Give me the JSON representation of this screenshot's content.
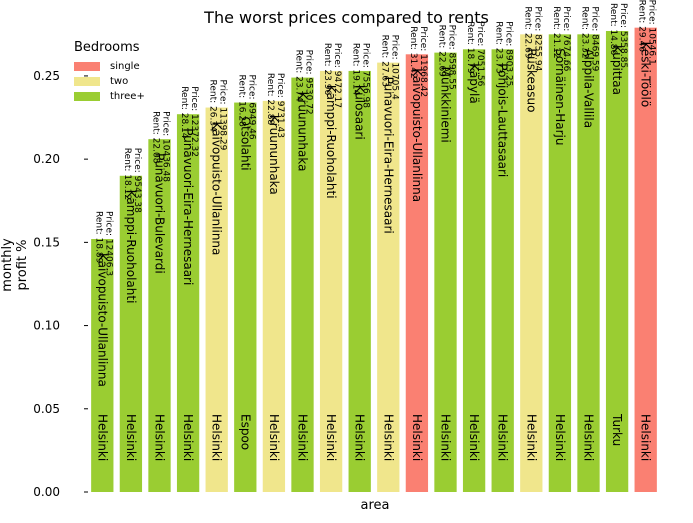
{
  "chart_data": {
    "type": "bar",
    "title": "The worst prices compared to rents",
    "xlabel": "area",
    "ylabel": "monthly profit %",
    "ylim": [
      0,
      0.28
    ],
    "yticks": [
      "0.00",
      "0.05",
      "0.10",
      "0.15",
      "0.20",
      "0.25"
    ],
    "grid": false,
    "legend": {
      "title": "Bedrooms",
      "placement": "top-left",
      "items": [
        {
          "label": "single",
          "color": "#fa8072"
        },
        {
          "label": "two",
          "color": "#f0e68c"
        },
        {
          "label": "three+",
          "color": "#9acd32"
        }
      ]
    },
    "bars": [
      {
        "area": "Kaivopuisto-Ullanlinna",
        "city": "Helsinki",
        "value": 0.152,
        "bedrooms": "three+",
        "price": "Price: 12406.3",
        "rent": "Rent: 18.89"
      },
      {
        "area": "Kamppi-Ruoholahti",
        "city": "Helsinki",
        "value": 0.19,
        "bedrooms": "three+",
        "price": "Price: 9543.38",
        "rent": "Rent: 18.12"
      },
      {
        "area": "Punavuori-Bulevardi",
        "city": "Helsinki",
        "value": 0.212,
        "bedrooms": "three+",
        "price": "Price: 10436.48",
        "rent": "Rent: 22.08"
      },
      {
        "area": "Punavuori-Eira-Hernesaari",
        "city": "Helsinki",
        "value": 0.227,
        "bedrooms": "three+",
        "price": "Price: 12372.32",
        "rent": "Rent: 28.14"
      },
      {
        "area": "Kaivopuisto-Ullanlinna",
        "city": "Helsinki",
        "value": 0.231,
        "bedrooms": "two",
        "price": "Price: 11398.29",
        "rent": "Rent: 26.34"
      },
      {
        "area": "Otsolahti",
        "city": "Espoo",
        "value": 0.234,
        "bedrooms": "three+",
        "price": "Price: 6949.46",
        "rent": "Rent: 16.28"
      },
      {
        "area": "Kruununhaka",
        "city": "Helsinki",
        "value": 0.235,
        "bedrooms": "two",
        "price": "Price: 9731.43",
        "rent": "Rent: 22.88"
      },
      {
        "area": "Kruununhaka",
        "city": "Helsinki",
        "value": 0.249,
        "bedrooms": "three+",
        "price": "Price: 9530.72",
        "rent": "Rent: 23.74"
      },
      {
        "area": "Kamppi-Ruoholahti",
        "city": "Helsinki",
        "value": 0.253,
        "bedrooms": "two",
        "price": "Price: 9472.17",
        "rent": "Rent: 23.96"
      },
      {
        "area": "Kulosaari",
        "city": "Helsinki",
        "value": 0.253,
        "bedrooms": "three+",
        "price": "Price: 7556.98",
        "rent": "Rent: 19.14"
      },
      {
        "area": "Punavuori-Eira-Hernesaari",
        "city": "Helsinki",
        "value": 0.258,
        "bedrooms": "two",
        "price": "Price: 10705.4",
        "rent": "Rent: 27.63"
      },
      {
        "area": "Kaivopuisto-Ullanlinna",
        "city": "Helsinki",
        "value": 0.263,
        "bedrooms": "single",
        "price": "Price: 11968.42",
        "rent": "Rent: 31.42"
      },
      {
        "area": "Munkkiniemi",
        "city": "Helsinki",
        "value": 0.264,
        "bedrooms": "three+",
        "price": "Price: 8598.55",
        "rent": "Rent: 22.69"
      },
      {
        "area": "Käpylä",
        "city": "Helsinki",
        "value": 0.266,
        "bedrooms": "three+",
        "price": "Price: 7051.56",
        "rent": "Rent: 18.79"
      },
      {
        "area": "Pohjois-Lauttasaari",
        "city": "Helsinki",
        "value": 0.266,
        "bedrooms": "three+",
        "price": "Price: 8903.25",
        "rent": "Rent: 23.73"
      },
      {
        "area": "Ruskeasuo",
        "city": "Helsinki",
        "value": 0.275,
        "bedrooms": "two",
        "price": "Price: 8255.94",
        "rent": "Rent: 22.69"
      },
      {
        "area": "Sörnäinen-Harju",
        "city": "Helsinki",
        "value": 0.275,
        "bedrooms": "three+",
        "price": "Price: 7674.66",
        "rent": "Rent: 21.12"
      },
      {
        "area": "Alppila-Vallila",
        "city": "Helsinki",
        "value": 0.275,
        "bedrooms": "three+",
        "price": "Price: 8469.59",
        "rent": "Rent: 23.32"
      },
      {
        "area": "Kupittaa",
        "city": "Turku",
        "value": 0.277,
        "bedrooms": "three+",
        "price": "Price: 5358.85",
        "rent": "Rent: 14.86"
      },
      {
        "area": "Keski-Töölö",
        "city": "Helsinki",
        "value": 0.279,
        "bedrooms": "single",
        "price": "Price: 10546.1",
        "rent": "Rent: 29.46"
      }
    ]
  }
}
